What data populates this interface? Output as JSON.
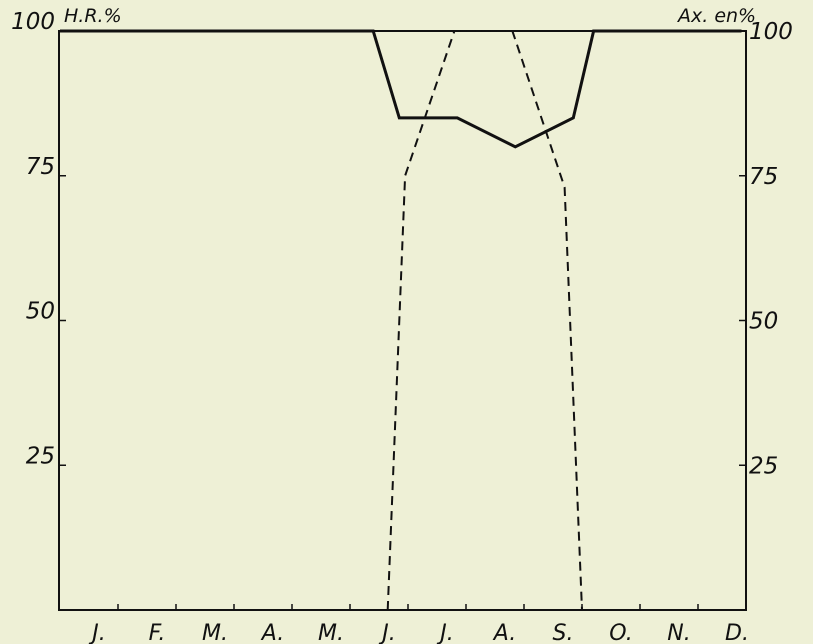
{
  "chart_data": {
    "type": "line",
    "title": "",
    "left_axis_label": "H.R.%",
    "right_axis_label": "Ax. en%",
    "categories": [
      "J.",
      "F.",
      "M.",
      "A.",
      "M.",
      "J.",
      "J.",
      "A.",
      "S.",
      "O.",
      "N.",
      "D."
    ],
    "ylim": [
      0,
      100
    ],
    "left_ticks": [
      "100",
      "75",
      "50",
      "25"
    ],
    "right_ticks": [
      "100",
      "75",
      "50",
      "25"
    ],
    "grid": false,
    "series": [
      {
        "style": "solid",
        "color": "#111111",
        "points": [
          [
            0.0,
            100
          ],
          [
            5.4,
            100
          ],
          [
            5.85,
            85
          ],
          [
            6.85,
            85
          ],
          [
            7.85,
            80
          ],
          [
            8.85,
            85
          ],
          [
            9.2,
            100
          ],
          [
            11.75,
            100
          ]
        ]
      },
      {
        "style": "dashed",
        "color": "#111111",
        "points": [
          [
            5.65,
            0
          ],
          [
            5.95,
            75
          ],
          [
            6.8,
            100
          ],
          [
            7.8,
            100
          ],
          [
            8.7,
            73
          ],
          [
            9.0,
            0
          ]
        ]
      }
    ]
  }
}
